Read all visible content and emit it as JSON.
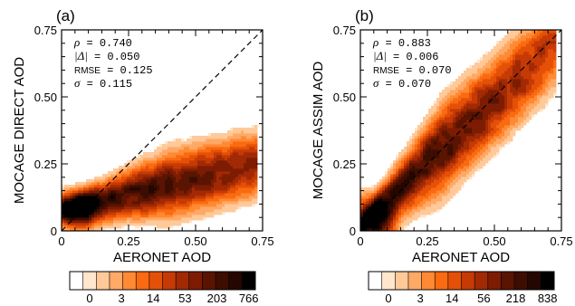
{
  "chart_data": [
    {
      "type": "heatmap",
      "panel": "(a)",
      "xlabel": "AERONET AOD",
      "ylabel": "MOCAGE DIRECT AOD",
      "xlim": [
        0,
        0.75
      ],
      "ylim": [
        0,
        0.75
      ],
      "xticks": [
        "0",
        "0.25",
        "0.50",
        "0.75"
      ],
      "yticks": [
        "0",
        "0.25",
        "0.50",
        "0.75"
      ],
      "one_to_one_line": true,
      "stats": [
        {
          "symbol": "ρ",
          "text": " = 0.740"
        },
        {
          "symbol": "|Δ|",
          "text": " = 0.050"
        },
        {
          "symbol": "RMSE",
          "text": " = 0.125"
        },
        {
          "symbol": "σ",
          "text": " = 0.115"
        }
      ],
      "density": {
        "peak": [
          0.06,
          0.08
        ],
        "ridge": [
          [
            0.05,
            0.08
          ],
          [
            0.25,
            0.15
          ],
          [
            0.5,
            0.21
          ],
          [
            0.7,
            0.24
          ]
        ],
        "y_upper_envelope": [
          [
            0.0,
            0.14
          ],
          [
            0.15,
            0.25
          ],
          [
            0.25,
            0.31
          ],
          [
            0.5,
            0.31
          ],
          [
            0.7,
            0.31
          ]
        ]
      },
      "colorbar": {
        "tick_labels": [
          "0",
          "3",
          "14",
          "53",
          "203",
          "766"
        ],
        "colors": [
          "#ffffff",
          "#ffe6cc",
          "#ffc999",
          "#ffa966",
          "#ff8a33",
          "#fa6a10",
          "#e55008",
          "#c53a05",
          "#a12a04",
          "#7d1c03",
          "#5a1402",
          "#3d0d01",
          "#240700",
          "#000000"
        ]
      }
    },
    {
      "type": "heatmap",
      "panel": "(b)",
      "xlabel": "AERONET AOD",
      "ylabel": "MOCAGE ASSIM AOD",
      "xlim": [
        0,
        0.75
      ],
      "ylim": [
        0,
        0.75
      ],
      "xticks": [
        "0",
        "0.25",
        "0.50",
        "0.75"
      ],
      "yticks": [
        "0",
        "0.25",
        "0.50",
        "0.75"
      ],
      "one_to_one_line": true,
      "stats": [
        {
          "symbol": "ρ",
          "text": " = 0.883"
        },
        {
          "symbol": "|Δ|",
          "text": " = 0.006"
        },
        {
          "symbol": "RMSE",
          "text": " = 0.070"
        },
        {
          "symbol": "σ",
          "text": " = 0.070"
        }
      ],
      "density": {
        "peak": [
          0.05,
          0.05
        ],
        "ridge": [
          [
            0.05,
            0.05
          ],
          [
            0.25,
            0.24
          ],
          [
            0.5,
            0.45
          ],
          [
            0.7,
            0.68
          ]
        ]
      },
      "colorbar": {
        "tick_labels": [
          "0",
          "3",
          "14",
          "56",
          "218",
          "838"
        ],
        "colors": [
          "#ffffff",
          "#ffe6cc",
          "#ffc999",
          "#ffa966",
          "#ff8a33",
          "#fa6a10",
          "#e55008",
          "#c53a05",
          "#a12a04",
          "#7d1c03",
          "#5a1402",
          "#3d0d01",
          "#240700",
          "#000000"
        ]
      }
    }
  ]
}
